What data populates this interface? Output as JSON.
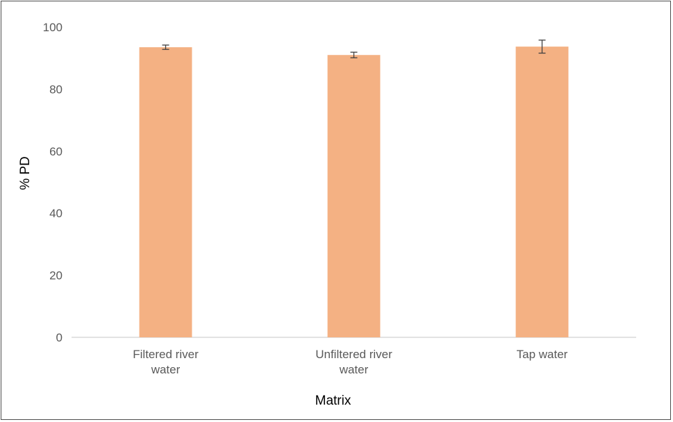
{
  "chart_data": {
    "type": "bar",
    "categories": [
      [
        "Filtered river",
        "water"
      ],
      [
        "Unfiltered river",
        "water"
      ],
      [
        "Tap water"
      ]
    ],
    "values": [
      93.5,
      91.0,
      93.7
    ],
    "error": [
      0.7,
      0.9,
      2.1
    ],
    "xlabel": "Matrix",
    "ylabel": "% PD",
    "ylim": [
      0,
      100
    ],
    "yticks": [
      0,
      20,
      40,
      60,
      80,
      100
    ],
    "ytick_labels": [
      "0",
      "20",
      "40",
      "60",
      "80",
      "100"
    ],
    "grid": false,
    "legend": "none",
    "colors": {
      "bar": "#f4b183",
      "error_bar": "#404040",
      "axis": "#d9d9d9",
      "tick_text": "#595959"
    }
  }
}
